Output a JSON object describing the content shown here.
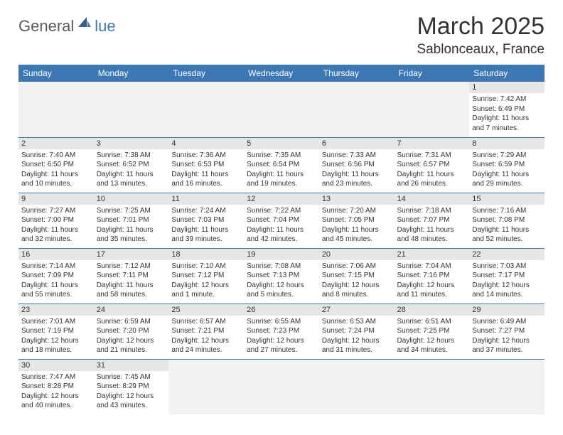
{
  "logo": {
    "text1": "General",
    "text2": "lue"
  },
  "header": {
    "month": "March 2025",
    "location": "Sablonceaux, France"
  },
  "colors": {
    "brand_blue": "#3d78b5",
    "header_text": "#ffffff",
    "daynum_bg": "#e6e6e6",
    "empty_bg": "#f2f2f2",
    "body_text": "#333333"
  },
  "columns": [
    "Sunday",
    "Monday",
    "Tuesday",
    "Wednesday",
    "Thursday",
    "Friday",
    "Saturday"
  ],
  "weeks": [
    [
      null,
      null,
      null,
      null,
      null,
      null,
      {
        "day": "1",
        "sunrise": "Sunrise: 7:42 AM",
        "sunset": "Sunset: 6:49 PM",
        "daylight": "Daylight: 11 hours and 7 minutes."
      }
    ],
    [
      {
        "day": "2",
        "sunrise": "Sunrise: 7:40 AM",
        "sunset": "Sunset: 6:50 PM",
        "daylight": "Daylight: 11 hours and 10 minutes."
      },
      {
        "day": "3",
        "sunrise": "Sunrise: 7:38 AM",
        "sunset": "Sunset: 6:52 PM",
        "daylight": "Daylight: 11 hours and 13 minutes."
      },
      {
        "day": "4",
        "sunrise": "Sunrise: 7:36 AM",
        "sunset": "Sunset: 6:53 PM",
        "daylight": "Daylight: 11 hours and 16 minutes."
      },
      {
        "day": "5",
        "sunrise": "Sunrise: 7:35 AM",
        "sunset": "Sunset: 6:54 PM",
        "daylight": "Daylight: 11 hours and 19 minutes."
      },
      {
        "day": "6",
        "sunrise": "Sunrise: 7:33 AM",
        "sunset": "Sunset: 6:56 PM",
        "daylight": "Daylight: 11 hours and 23 minutes."
      },
      {
        "day": "7",
        "sunrise": "Sunrise: 7:31 AM",
        "sunset": "Sunset: 6:57 PM",
        "daylight": "Daylight: 11 hours and 26 minutes."
      },
      {
        "day": "8",
        "sunrise": "Sunrise: 7:29 AM",
        "sunset": "Sunset: 6:59 PM",
        "daylight": "Daylight: 11 hours and 29 minutes."
      }
    ],
    [
      {
        "day": "9",
        "sunrise": "Sunrise: 7:27 AM",
        "sunset": "Sunset: 7:00 PM",
        "daylight": "Daylight: 11 hours and 32 minutes."
      },
      {
        "day": "10",
        "sunrise": "Sunrise: 7:25 AM",
        "sunset": "Sunset: 7:01 PM",
        "daylight": "Daylight: 11 hours and 35 minutes."
      },
      {
        "day": "11",
        "sunrise": "Sunrise: 7:24 AM",
        "sunset": "Sunset: 7:03 PM",
        "daylight": "Daylight: 11 hours and 39 minutes."
      },
      {
        "day": "12",
        "sunrise": "Sunrise: 7:22 AM",
        "sunset": "Sunset: 7:04 PM",
        "daylight": "Daylight: 11 hours and 42 minutes."
      },
      {
        "day": "13",
        "sunrise": "Sunrise: 7:20 AM",
        "sunset": "Sunset: 7:05 PM",
        "daylight": "Daylight: 11 hours and 45 minutes."
      },
      {
        "day": "14",
        "sunrise": "Sunrise: 7:18 AM",
        "sunset": "Sunset: 7:07 PM",
        "daylight": "Daylight: 11 hours and 48 minutes."
      },
      {
        "day": "15",
        "sunrise": "Sunrise: 7:16 AM",
        "sunset": "Sunset: 7:08 PM",
        "daylight": "Daylight: 11 hours and 52 minutes."
      }
    ],
    [
      {
        "day": "16",
        "sunrise": "Sunrise: 7:14 AM",
        "sunset": "Sunset: 7:09 PM",
        "daylight": "Daylight: 11 hours and 55 minutes."
      },
      {
        "day": "17",
        "sunrise": "Sunrise: 7:12 AM",
        "sunset": "Sunset: 7:11 PM",
        "daylight": "Daylight: 11 hours and 58 minutes."
      },
      {
        "day": "18",
        "sunrise": "Sunrise: 7:10 AM",
        "sunset": "Sunset: 7:12 PM",
        "daylight": "Daylight: 12 hours and 1 minute."
      },
      {
        "day": "19",
        "sunrise": "Sunrise: 7:08 AM",
        "sunset": "Sunset: 7:13 PM",
        "daylight": "Daylight: 12 hours and 5 minutes."
      },
      {
        "day": "20",
        "sunrise": "Sunrise: 7:06 AM",
        "sunset": "Sunset: 7:15 PM",
        "daylight": "Daylight: 12 hours and 8 minutes."
      },
      {
        "day": "21",
        "sunrise": "Sunrise: 7:04 AM",
        "sunset": "Sunset: 7:16 PM",
        "daylight": "Daylight: 12 hours and 11 minutes."
      },
      {
        "day": "22",
        "sunrise": "Sunrise: 7:03 AM",
        "sunset": "Sunset: 7:17 PM",
        "daylight": "Daylight: 12 hours and 14 minutes."
      }
    ],
    [
      {
        "day": "23",
        "sunrise": "Sunrise: 7:01 AM",
        "sunset": "Sunset: 7:19 PM",
        "daylight": "Daylight: 12 hours and 18 minutes."
      },
      {
        "day": "24",
        "sunrise": "Sunrise: 6:59 AM",
        "sunset": "Sunset: 7:20 PM",
        "daylight": "Daylight: 12 hours and 21 minutes."
      },
      {
        "day": "25",
        "sunrise": "Sunrise: 6:57 AM",
        "sunset": "Sunset: 7:21 PM",
        "daylight": "Daylight: 12 hours and 24 minutes."
      },
      {
        "day": "26",
        "sunrise": "Sunrise: 6:55 AM",
        "sunset": "Sunset: 7:23 PM",
        "daylight": "Daylight: 12 hours and 27 minutes."
      },
      {
        "day": "27",
        "sunrise": "Sunrise: 6:53 AM",
        "sunset": "Sunset: 7:24 PM",
        "daylight": "Daylight: 12 hours and 31 minutes."
      },
      {
        "day": "28",
        "sunrise": "Sunrise: 6:51 AM",
        "sunset": "Sunset: 7:25 PM",
        "daylight": "Daylight: 12 hours and 34 minutes."
      },
      {
        "day": "29",
        "sunrise": "Sunrise: 6:49 AM",
        "sunset": "Sunset: 7:27 PM",
        "daylight": "Daylight: 12 hours and 37 minutes."
      }
    ],
    [
      {
        "day": "30",
        "sunrise": "Sunrise: 7:47 AM",
        "sunset": "Sunset: 8:28 PM",
        "daylight": "Daylight: 12 hours and 40 minutes."
      },
      {
        "day": "31",
        "sunrise": "Sunrise: 7:45 AM",
        "sunset": "Sunset: 8:29 PM",
        "daylight": "Daylight: 12 hours and 43 minutes."
      },
      null,
      null,
      null,
      null,
      null
    ]
  ]
}
